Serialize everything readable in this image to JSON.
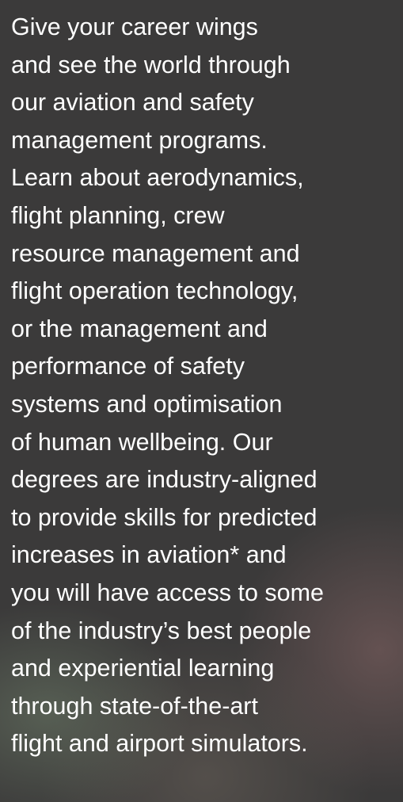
{
  "paragraph": {
    "lines": [
      "Give your career wings",
      "and see the world through",
      "our aviation and safety",
      "management programs.",
      "Learn about aerodynamics,",
      "flight planning, crew",
      "resource management and",
      "flight operation technology,",
      "or the management and",
      "performance of safety",
      "systems and optimisation",
      "of human wellbeing. Our",
      "degrees are industry-aligned",
      "to provide skills for predicted",
      "increases in aviation* and",
      "you will have access to some",
      "of the industry’s best people",
      "and experiential learning",
      "through state-of-the-art",
      "flight and airport simulators."
    ]
  }
}
